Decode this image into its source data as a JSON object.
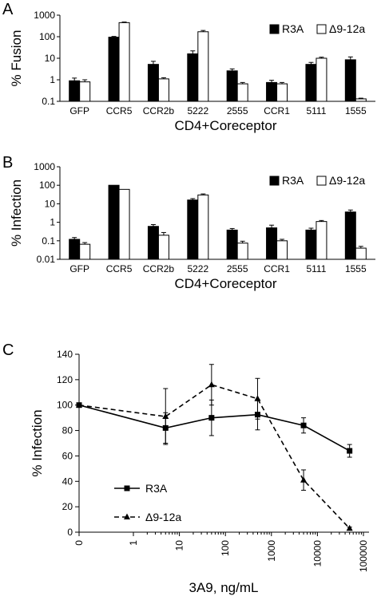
{
  "chart_data": [
    {
      "panel": "A",
      "type": "bar",
      "ylabel": "% Fusion",
      "xlabel": "CD4+Coreceptor",
      "yscale": "log",
      "ylim": [
        0.1,
        1000
      ],
      "yticks": [
        "0.1",
        "1",
        "10",
        "100",
        "1000"
      ],
      "categories": [
        "GFP",
        "CCR5",
        "CCR2b",
        "5222",
        "2555",
        "CCR1",
        "5111",
        "1555"
      ],
      "legend_position": "top-right",
      "series": [
        {
          "name": "R3A",
          "fill": "#000000",
          "values": [
            0.9,
            95,
            5.2,
            16,
            2.6,
            0.75,
            5.2,
            8.5
          ],
          "errors": [
            0.3,
            8,
            2,
            6,
            0.6,
            0.2,
            1.2,
            3
          ]
        },
        {
          "name": "Δ9-12a",
          "fill": "#ffffff",
          "values": [
            0.8,
            450,
            1.1,
            170,
            0.65,
            0.65,
            10,
            0.13
          ],
          "errors": [
            0.2,
            30,
            0.15,
            25,
            0.1,
            0.1,
            1.2,
            0.01
          ]
        }
      ]
    },
    {
      "panel": "B",
      "type": "bar",
      "ylabel": "% Infection",
      "xlabel": "CD4+Coreceptor",
      "yscale": "log",
      "ylim": [
        0.01,
        1000
      ],
      "yticks": [
        "0.01",
        "0.1",
        "1",
        "10",
        "100",
        "1000"
      ],
      "categories": [
        "GFP",
        "CCR5",
        "CCR2b",
        "5222",
        "2555",
        "CCR1",
        "5111",
        "1555"
      ],
      "legend_position": "top-right",
      "series": [
        {
          "name": "R3A",
          "fill": "#000000",
          "values": [
            0.12,
            100,
            0.6,
            16,
            0.38,
            0.5,
            0.38,
            3.6
          ],
          "errors": [
            0.03,
            0,
            0.15,
            3,
            0.08,
            0.2,
            0.1,
            1
          ]
        },
        {
          "name": "Δ9-12a",
          "fill": "#ffffff",
          "values": [
            0.065,
            60,
            0.2,
            30,
            0.075,
            0.1,
            1.1,
            0.04
          ],
          "errors": [
            0.015,
            0,
            0.08,
            4,
            0.02,
            0.02,
            0.15,
            0.01
          ]
        }
      ]
    },
    {
      "panel": "C",
      "type": "line",
      "ylabel": "% Infection",
      "xlabel": "3A9, ng/mL",
      "xscale": "log-with-zero",
      "ylim": [
        0,
        140
      ],
      "yticks": [
        "0",
        "20",
        "40",
        "60",
        "80",
        "100",
        "120",
        "140"
      ],
      "xticks": [
        "0",
        "1",
        "10",
        "100",
        "1000",
        "10000",
        "100000"
      ],
      "legend_position": "bottom-left",
      "series": [
        {
          "name": "R3A",
          "marker": "square",
          "dash": "solid",
          "x": [
            0,
            5,
            50,
            500,
            5000,
            50000
          ],
          "y": [
            100,
            82,
            90,
            92.5,
            84,
            64
          ],
          "errors": [
            0,
            12,
            14,
            12,
            6,
            5
          ]
        },
        {
          "name": "Δ9-12a",
          "marker": "triangle",
          "dash": "dashed",
          "x": [
            0,
            5,
            50,
            500,
            5000,
            50000
          ],
          "y": [
            100,
            91,
            116,
            105,
            41,
            3
          ],
          "errors": [
            0,
            22,
            16,
            16,
            8,
            1
          ]
        }
      ]
    }
  ]
}
